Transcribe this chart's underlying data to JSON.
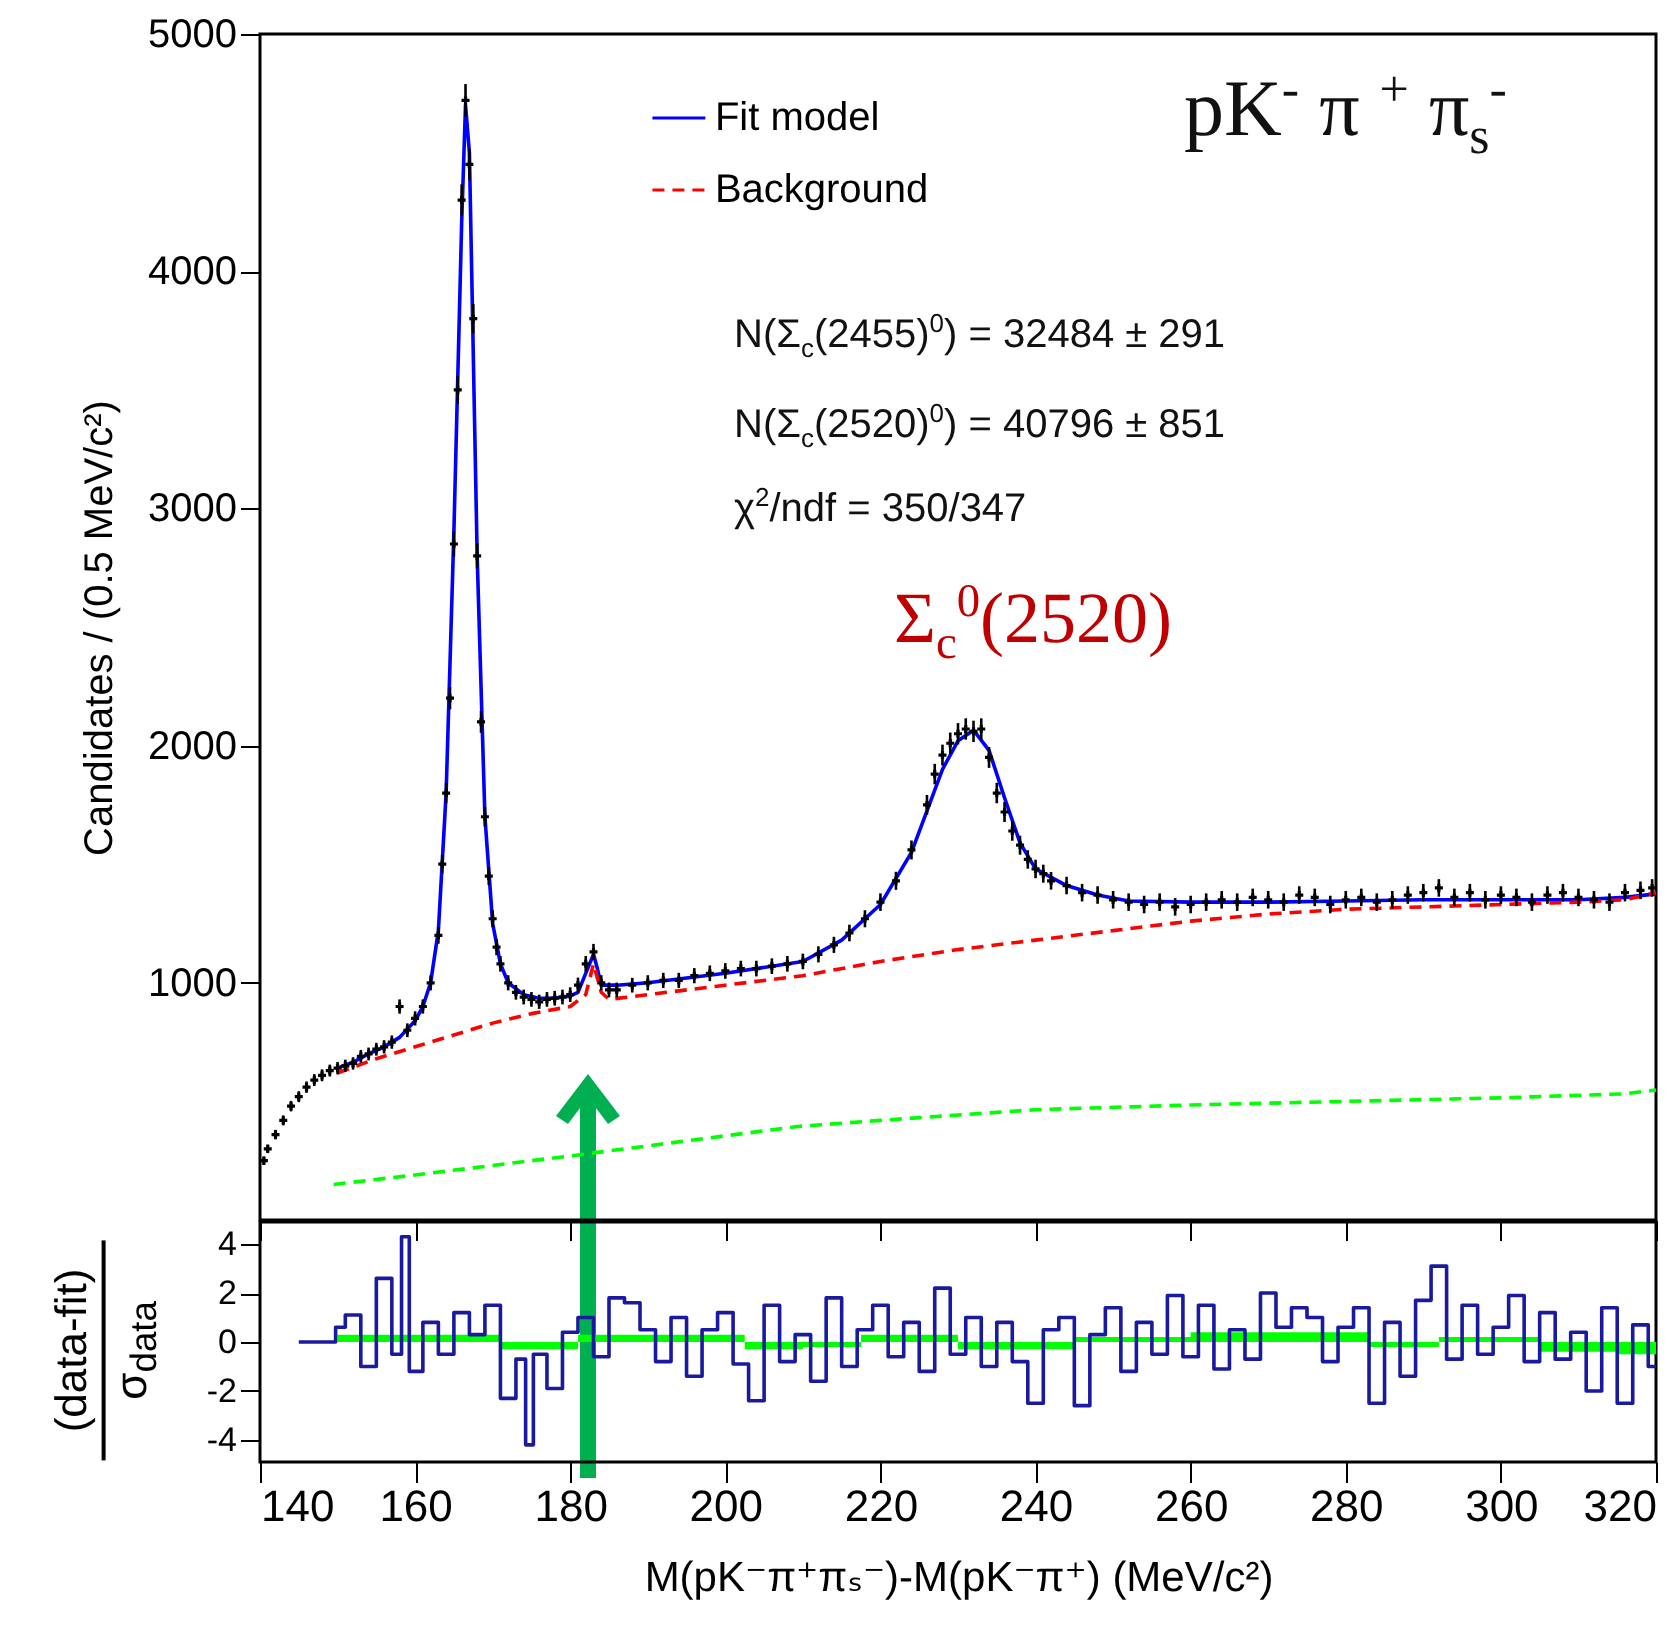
{
  "chart_data": [
    {
      "type": "line",
      "ylabel": "Candidates / (0.5 MeV/c²)",
      "xlim": [
        140,
        320
      ],
      "xticks": [
        140,
        160,
        180,
        200,
        220,
        240,
        260,
        280,
        300,
        320
      ],
      "ylim": [
        0,
        5000
      ],
      "yticks": [
        1000,
        2000,
        3000,
        4000,
        5000
      ],
      "tick_labels": "y",
      "legend": "top",
      "grid": false,
      "annotations": [
        "N(Σ$_{c}$(2455)$^{0}$) = 32484 ± 291",
        "N(Σ$_{c}$(2520)$^{0}$) = 40796 ± 851",
        "χ$^{2}$/ndf = 350/347",
        "pK$^{-}$ π $^{+}$ π$_{s}$$^{-}$",
        "Σ$_{c}$$^{0}$(2520)"
      ],
      "series": [
        {
          "type": "scatter",
          "color": "#000000",
          "marker": "cross",
          "x": [
            140.5,
            141,
            142,
            143,
            144,
            145,
            146,
            147,
            148,
            149,
            150,
            151,
            152,
            153,
            154,
            155,
            156,
            157,
            158,
            159,
            160,
            161,
            162,
            163,
            163.5,
            164,
            164.5,
            165,
            165.5,
            166,
            166.5,
            167,
            167.5,
            168,
            168.5,
            169,
            169.5,
            170,
            170.5,
            171,
            172,
            173,
            174,
            175,
            176,
            177,
            178,
            179,
            180,
            181,
            182,
            183,
            184,
            185,
            186,
            188,
            190,
            192,
            194,
            196,
            198,
            200,
            202,
            204,
            206,
            208,
            210,
            212,
            214,
            216,
            218,
            220,
            222,
            224,
            226,
            227,
            228,
            229,
            230,
            231,
            232,
            233,
            234,
            235,
            236,
            237,
            238,
            239,
            240,
            241,
            242,
            244,
            246,
            248,
            250,
            252,
            254,
            256,
            258,
            260,
            262,
            264,
            266,
            268,
            270,
            272,
            274,
            276,
            278,
            280,
            282,
            284,
            286,
            288,
            290,
            292,
            294,
            296,
            298,
            300,
            302,
            304,
            306,
            308,
            310,
            312,
            314,
            316,
            318,
            319.5
          ],
          "values": [
            250,
            300,
            360,
            420,
            480,
            520,
            560,
            590,
            610,
            630,
            640,
            650,
            660,
            690,
            700,
            720,
            730,
            750,
            900,
            800,
            850,
            900,
            1000,
            1200,
            1500,
            1800,
            2200,
            2850,
            3500,
            4300,
            4720,
            4450,
            3800,
            2800,
            2100,
            1700,
            1450,
            1270,
            1150,
            1080,
            1000,
            960,
            940,
            930,
            920,
            930,
            935,
            940,
            950,
            990,
            1080,
            1130,
            1000,
            970,
            970,
            990,
            1000,
            1010,
            1010,
            1030,
            1040,
            1050,
            1060,
            1060,
            1070,
            1080,
            1090,
            1120,
            1160,
            1210,
            1270,
            1340,
            1430,
            1560,
            1750,
            1880,
            1960,
            2010,
            2050,
            2070,
            2060,
            2070,
            1950,
            1800,
            1720,
            1640,
            1580,
            1520,
            1480,
            1460,
            1430,
            1410,
            1380,
            1370,
            1350,
            1340,
            1330,
            1340,
            1320,
            1330,
            1340,
            1350,
            1340,
            1360,
            1350,
            1340,
            1370,
            1360,
            1330,
            1350,
            1360,
            1340,
            1350,
            1370,
            1380,
            1400,
            1360,
            1380,
            1350,
            1370,
            1360,
            1340,
            1370,
            1380,
            1360,
            1350,
            1340,
            1380,
            1390,
            1400
          ],
          "errors": [
            18,
            18,
            20,
            21,
            22,
            23,
            24,
            25,
            25,
            25,
            26,
            26,
            26,
            27,
            27,
            27,
            28,
            28,
            30,
            29,
            30,
            30,
            32,
            35,
            39,
            43,
            47,
            53,
            59,
            66,
            69,
            67,
            62,
            53,
            46,
            41,
            38,
            36,
            34,
            33,
            32,
            31,
            31,
            31,
            30,
            31,
            31,
            31,
            31,
            32,
            33,
            34,
            32,
            31,
            31,
            31,
            32,
            32,
            32,
            32,
            33,
            33,
            33,
            33,
            33,
            33,
            33,
            34,
            34,
            35,
            36,
            37,
            38,
            40,
            42,
            43,
            44,
            45,
            45,
            45,
            45,
            45,
            44,
            43,
            42,
            41,
            40,
            39,
            39,
            38,
            37,
            37,
            37,
            37,
            37,
            37,
            37,
            37,
            37,
            37,
            37,
            37,
            37,
            37,
            37,
            37,
            37,
            37,
            37,
            37,
            37,
            37,
            37,
            37,
            37,
            37,
            37,
            37,
            37,
            37,
            37,
            37,
            37,
            37,
            37,
            37,
            37,
            37,
            37,
            37
          ]
        },
        {
          "name": "Fit model",
          "color": "#0000ff",
          "line_style": "solid",
          "x": [
            150,
            152,
            154,
            156,
            158,
            160,
            161,
            162,
            163,
            164,
            165,
            166,
            166.5,
            167,
            168,
            169,
            170,
            171,
            172,
            174,
            176,
            178,
            180,
            181,
            182,
            183,
            183.5,
            184,
            186,
            190,
            200,
            210,
            215,
            220,
            224,
            228,
            230,
            232,
            234,
            236,
            238,
            240,
            244,
            248,
            252,
            260,
            270,
            280,
            290,
            300,
            310,
            316,
            320
          ],
          "values": [
            640,
            665,
            700,
            730,
            770,
            840,
            900,
            1000,
            1220,
            1800,
            2900,
            4200,
            4700,
            4500,
            2800,
            1700,
            1250,
            1080,
            1000,
            950,
            935,
            935,
            945,
            960,
            1040,
            1120,
            1060,
            990,
            990,
            1000,
            1040,
            1090,
            1180,
            1330,
            1550,
            1900,
            2020,
            2065,
            1980,
            1780,
            1590,
            1480,
            1410,
            1370,
            1345,
            1340,
            1340,
            1345,
            1350,
            1350,
            1350,
            1360,
            1375
          ]
        },
        {
          "name": "Background",
          "color": "#ff0000",
          "line_style": "dashed",
          "x": [
            150,
            155,
            160,
            165,
            170,
            175,
            180,
            182,
            183,
            184,
            185,
            190,
            200,
            210,
            220,
            230,
            240,
            250,
            260,
            270,
            280,
            290,
            300,
            310,
            316,
            320
          ],
          "values": [
            620,
            680,
            730,
            780,
            830,
            870,
            900,
            950,
            1080,
            960,
            930,
            950,
            990,
            1030,
            1090,
            1140,
            1180,
            1220,
            1260,
            1290,
            1310,
            1320,
            1330,
            1340,
            1350,
            1380
          ]
        },
        {
          "color": "#00ff00",
          "line_style": "dashed",
          "x": [
            149.5,
            160,
            180,
            200,
            209.6,
            220,
            240,
            260,
            280,
            300,
            316,
            320
          ],
          "values": [
            150,
            190,
            270,
            355,
            395,
            420,
            465,
            485,
            500,
            515,
            532,
            548
          ]
        }
      ]
    },
    {
      "type": "step",
      "xlabel": "M(pK⁻π⁺πₛ⁻)-M(pK⁻π⁺) (MeV/c²)",
      "ylabel": "(data-fit)\nσ$_{data}$",
      "xlim": [
        140,
        320
      ],
      "xticks": [
        140,
        160,
        180,
        200,
        220,
        240,
        260,
        280,
        300,
        320
      ],
      "ylim": [
        -4.9,
        4.9
      ],
      "yticks": [
        -4,
        -2,
        0,
        2,
        4
      ],
      "grid": false,
      "series": [
        {
          "type": "area",
          "color": "#00ff00",
          "x": [
            150,
            170,
            172,
            180,
            182,
            200,
            205,
            215,
            220,
            240,
            250,
            270,
            282,
            284,
            300,
            310,
            320
          ],
          "values": [
            0.3,
            0.3,
            -0.3,
            -0.3,
            0.3,
            0.3,
            -0.3,
            -0.2,
            0.3,
            -0.3,
            0.2,
            0.4,
            0.4,
            -0.2,
            0.2,
            -0.4,
            -0.5
          ]
        },
        {
          "color": "#1a1aa0",
          "x": [
            145,
            149.5,
            150,
            152,
            154,
            156,
            158,
            158.5,
            160,
            162,
            164,
            166,
            168,
            170,
            172,
            174,
            174.5,
            176,
            178,
            180,
            182,
            184,
            186,
            188,
            190,
            192,
            194,
            196,
            198,
            200,
            202,
            204,
            206,
            208,
            210,
            212,
            214,
            216,
            218,
            220,
            222,
            224,
            226,
            228,
            230,
            232,
            234,
            236,
            238,
            240,
            242,
            244,
            246,
            248,
            250,
            252,
            254,
            256,
            258,
            260,
            262,
            264,
            266,
            268,
            270,
            272,
            274,
            276,
            278,
            280,
            282,
            284,
            286,
            288,
            290,
            292,
            294,
            296,
            298,
            300,
            302,
            304,
            306,
            308,
            310,
            312,
            314,
            316,
            318,
            320
          ],
          "values": [
            0,
            0,
            0.6,
            1.1,
            -1.0,
            2.6,
            -0.5,
            4.3,
            -1.2,
            0.8,
            -0.5,
            1.2,
            0.3,
            1.5,
            -2.3,
            -0.7,
            -4.2,
            -0.5,
            -1.9,
            0.4,
            1.0,
            -0.6,
            1.8,
            1.6,
            0.5,
            -0.8,
            1.0,
            -1.4,
            0.5,
            1.2,
            -0.9,
            -2.4,
            1.5,
            -0.8,
            0.3,
            -1.6,
            1.8,
            -1.0,
            0.5,
            1.5,
            -0.6,
            0.8,
            -1.2,
            2.2,
            -0.5,
            1.0,
            -1.0,
            0.8,
            -0.8,
            -2.5,
            0.5,
            1.0,
            -2.6,
            0.3,
            1.4,
            -1.2,
            0.8,
            -0.5,
            1.9,
            -0.6,
            1.5,
            -1.1,
            0.5,
            -0.7,
            2.0,
            0.6,
            1.4,
            1.0,
            -0.8,
            0.6,
            1.4,
            -2.5,
            0.8,
            -1.4,
            1.7,
            3.1,
            -0.7,
            1.5,
            -0.5,
            0.6,
            1.9,
            -0.8,
            1.2,
            -0.7,
            0.4,
            -2.0,
            1.4,
            -2.5,
            0.7,
            -1.0
          ]
        }
      ]
    }
  ]
}
